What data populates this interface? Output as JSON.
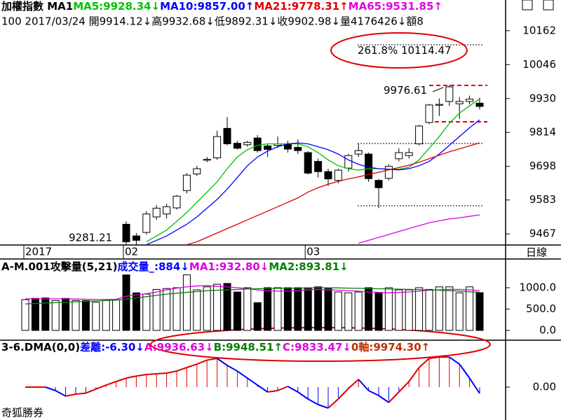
{
  "chart_data": [
    {
      "type": "candlestick",
      "header": [
        {
          "text": "加權指數 MA1",
          "color": "#000000"
        },
        {
          "text": "MA5:9928.34↓",
          "color": "#00c000"
        },
        {
          "text": "MA10:9857.00↑",
          "color": "#0000ff"
        },
        {
          "text": "MA21:9778.31↑",
          "color": "#e00000"
        },
        {
          "text": "MA65:9531.85↑",
          "color": "#e000e0"
        }
      ],
      "subheader": "100 2017/03/24 開9914.12↓高9932.68↓低9892.31↓收9902.98↓量4176426↓額8",
      "x_labels": [
        {
          "index": 0,
          "label": "2017"
        },
        {
          "index": 10,
          "label": "02"
        },
        {
          "index": 28,
          "label": "03"
        }
      ],
      "period": "日線",
      "ylim": [
        9429,
        10267
      ],
      "yticks": [
        10162,
        10046,
        9930,
        9814,
        9698,
        9583,
        9467
      ],
      "open": [
        null,
        null,
        null,
        null,
        null,
        null,
        null,
        null,
        null,
        null,
        9500,
        9460,
        9472,
        9525,
        9535,
        9556,
        9615,
        9672,
        9719,
        9727,
        9828,
        9777,
        9772,
        9795,
        9768,
        9770,
        9775,
        9763,
        9745,
        9715,
        9680,
        9650,
        9692,
        9740,
        9740,
        9650,
        9657,
        9724,
        9735,
        9775,
        9848,
        9907,
        9920,
        9912,
        9920,
        9914.12
      ],
      "high": [
        null,
        null,
        null,
        null,
        null,
        null,
        null,
        null,
        null,
        null,
        9510,
        9470,
        9545,
        9565,
        9570,
        9600,
        9675,
        9700,
        9730,
        9820,
        9867,
        9785,
        9785,
        9805,
        9775,
        9800,
        9785,
        9790,
        9750,
        9725,
        9690,
        9690,
        9740,
        9775,
        9745,
        9655,
        9705,
        9760,
        9760,
        9840,
        9912,
        9930,
        9976.61,
        9935,
        9940,
        9932.68
      ],
      "low": [
        null,
        null,
        null,
        null,
        null,
        null,
        null,
        null,
        null,
        null,
        9281.21,
        9430,
        9465,
        9515,
        9520,
        9550,
        9605,
        9665,
        9712,
        9720,
        9770,
        9755,
        9765,
        9745,
        9730,
        9760,
        9745,
        9740,
        9670,
        9660,
        9630,
        9640,
        9680,
        9730,
        9645,
        9555,
        9650,
        9715,
        9725,
        9770,
        9843,
        9870,
        9905,
        9860,
        9910,
        9892.31
      ],
      "close": [
        null,
        null,
        null,
        null,
        null,
        null,
        null,
        null,
        null,
        null,
        9440,
        9445,
        9535,
        9555,
        9560,
        9596,
        9668,
        9690,
        9722,
        9800,
        9775,
        9760,
        9780,
        9752,
        9756,
        9775,
        9757,
        9752,
        9675,
        9680,
        9655,
        9685,
        9735,
        9752,
        9656,
        9625,
        9698,
        9745,
        9745,
        9836,
        9908,
        9910,
        9970,
        9920,
        9928,
        9902.98
      ],
      "series": [
        {
          "name": "MA5",
          "color": "#00c000",
          "values": [
            null,
            null,
            null,
            null,
            null,
            null,
            null,
            null,
            null,
            null,
            null,
            null,
            9440,
            9460,
            9480,
            9510,
            9540,
            9575,
            9610,
            9645,
            9690,
            9730,
            9755,
            9770,
            9775,
            9775,
            9775,
            9775,
            9765,
            9745,
            9720,
            9700,
            9690,
            9685,
            9690,
            9690,
            9688,
            9688,
            9695,
            9720,
            9760,
            9800,
            9845,
            9880,
            9905,
            9928.34
          ]
        },
        {
          "name": "MA10",
          "color": "#0000ff",
          "values": [
            null,
            null,
            null,
            null,
            null,
            null,
            null,
            null,
            null,
            null,
            null,
            null,
            9430,
            9445,
            9460,
            9480,
            9500,
            9525,
            9555,
            9585,
            9620,
            9660,
            9700,
            9730,
            9750,
            9765,
            9775,
            9778,
            9775,
            9765,
            9755,
            9740,
            9720,
            9705,
            9695,
            9690,
            9688,
            9686,
            9690,
            9700,
            9715,
            9740,
            9770,
            9800,
            9830,
            9857
          ]
        },
        {
          "name": "MA21",
          "color": "#e00000",
          "values": [
            null,
            null,
            null,
            null,
            null,
            null,
            null,
            null,
            null,
            null,
            null,
            null,
            null,
            null,
            null,
            null,
            9430,
            9440,
            9455,
            9470,
            9485,
            9500,
            9515,
            9530,
            9545,
            9560,
            9575,
            9590,
            9610,
            9625,
            9637,
            9647,
            9655,
            9662,
            9670,
            9678,
            9686,
            9694,
            9702,
            9712,
            9724,
            9736,
            9748,
            9758,
            9768,
            9778.31
          ]
        },
        {
          "name": "MA65",
          "color": "#e000e0",
          "values": [
            null,
            null,
            null,
            null,
            null,
            null,
            null,
            null,
            null,
            null,
            null,
            null,
            null,
            null,
            null,
            null,
            null,
            null,
            null,
            null,
            null,
            null,
            null,
            null,
            null,
            null,
            null,
            null,
            null,
            null,
            null,
            null,
            null,
            9435,
            9445,
            9455,
            9465,
            9475,
            9485,
            9495,
            9505,
            9512,
            9518,
            9522,
            9527,
            9531.85
          ]
        }
      ],
      "annotations": [
        {
          "text": "261.8% 10114.47",
          "value": 10114.47
        },
        {
          "text": "9976.61",
          "value": 9976.61
        },
        {
          "text": "9281.21",
          "value": 9281.21
        }
      ]
    },
    {
      "type": "volume",
      "header": [
        {
          "text": "A-M.001攻擊量(5,21)",
          "color": "#000000"
        },
        {
          "text": "成交量_:884↓",
          "color": "#0000ff"
        },
        {
          "text": "MA1:932.80↓",
          "color": "#e000e0"
        },
        {
          "text": "MA2:893.81↓",
          "color": "#008000"
        }
      ],
      "ylim": [
        -213,
        1672
      ],
      "yticks": [
        {
          "value": 1000,
          "label": "1000.0"
        },
        {
          "value": 500,
          "label": "500.0"
        },
        {
          "value": 0,
          "label": "0.0"
        }
      ],
      "values": [
        720,
        750,
        760,
        700,
        750,
        700,
        700,
        660,
        700,
        720,
        1300,
        880,
        850,
        960,
        980,
        1000,
        1300,
        950,
        1020,
        1080,
        1100,
        900,
        1000,
        650,
        1000,
        1000,
        1000,
        1000,
        1000,
        1020,
        980,
        900,
        880,
        900,
        1000,
        880,
        1000,
        950,
        950,
        1000,
        960,
        1020,
        1020,
        880,
        1020,
        884
      ],
      "rising": [
        true,
        false,
        false,
        true,
        false,
        true,
        false,
        true,
        true,
        true,
        false,
        false,
        true,
        true,
        true,
        true,
        true,
        true,
        true,
        true,
        false,
        false,
        true,
        false,
        false,
        true,
        false,
        false,
        false,
        false,
        false,
        true,
        true,
        true,
        false,
        false,
        true,
        true,
        true,
        true,
        true,
        true,
        true,
        true,
        true,
        false
      ],
      "series": [
        {
          "name": "MA1",
          "color": "#e000e0",
          "values": [
            740,
            740,
            740,
            740,
            740,
            735,
            730,
            725,
            725,
            730,
            800,
            830,
            860,
            900,
            950,
            990,
            1020,
            1040,
            1050,
            1030,
            1020,
            1000,
            980,
            950,
            930,
            920,
            920,
            930,
            950,
            960,
            950,
            940,
            930,
            920,
            900,
            890,
            880,
            890,
            900,
            920,
            940,
            950,
            960,
            960,
            950,
            932.8
          ]
        },
        {
          "name": "MA2",
          "color": "#008000",
          "values": [
            620,
            630,
            640,
            650,
            660,
            670,
            680,
            690,
            700,
            710,
            730,
            760,
            790,
            820,
            850,
            870,
            890,
            910,
            930,
            940,
            950,
            960,
            970,
            975,
            980,
            985,
            990,
            990,
            995,
            1000,
            1000,
            995,
            990,
            985,
            980,
            975,
            970,
            965,
            960,
            955,
            950,
            940,
            930,
            920,
            905,
            893.81
          ]
        }
      ]
    },
    {
      "type": "dma",
      "header": [
        {
          "text": "3-6.DMA(0,0)",
          "color": "#000000"
        },
        {
          "text": "差離:-6.30↓",
          "color": "#0000ff"
        },
        {
          "text": "A:9936.63↓",
          "color": "#e000e0"
        },
        {
          "text": "B:9948.51↑",
          "color": "#008000"
        },
        {
          "text": "C:9833.47↓",
          "color": "#e000e0"
        },
        {
          "text": "0軸:9974.30↑",
          "color": "#c03000"
        }
      ],
      "footer": "奇狐勝券",
      "ylim": [
        -32.9,
        45.5
      ],
      "yticks": [
        {
          "value": 0,
          "label": "0.00"
        }
      ],
      "values": [
        0,
        0,
        0,
        -3.5,
        -9,
        -7,
        -6,
        -2,
        2,
        5.6,
        9,
        11,
        12.6,
        13.3,
        14,
        16,
        19.6,
        23,
        27,
        28.7,
        21.7,
        16,
        9,
        2,
        -4.9,
        -3.5,
        0.7,
        -4.9,
        -11.9,
        -17.5,
        -21,
        -11.9,
        -1.4,
        7.7,
        -3.5,
        -8.4,
        -15.4,
        -4.9,
        5.6,
        19.6,
        28.7,
        30,
        30,
        23,
        9,
        -6.3
      ]
    }
  ]
}
